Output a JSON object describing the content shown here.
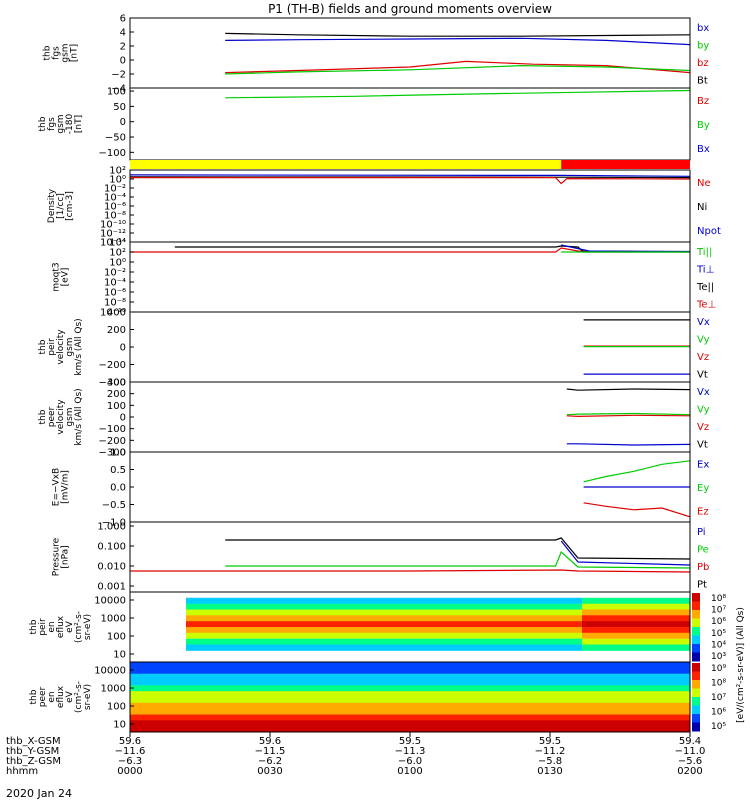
{
  "title": "P1 (TH-B) fields and ground moments overview",
  "date": "2020 Jan 24",
  "colors": {
    "black": "#000000",
    "red": "#dd0000",
    "green": "#00cc00",
    "blue": "#0000cc",
    "yellow": "#ffff00",
    "bar_red": "#ff0000"
  },
  "chart_data": [
    {
      "type": "line",
      "ylabel": [
        "thb",
        "fgs",
        "gsm",
        "[nT]"
      ],
      "ylim": [
        -4,
        6
      ],
      "ticks": [
        "6",
        "4",
        "2",
        "0",
        "−2",
        "−4"
      ],
      "tick_values": [
        6,
        4,
        2,
        0,
        -2,
        -4
      ],
      "series": [
        {
          "name": "Bt",
          "color": "#000000",
          "x": [
            0.17,
            0.3,
            0.5,
            0.7,
            0.85,
            1.0
          ],
          "values": [
            3.8,
            3.6,
            3.4,
            3.4,
            3.5,
            3.6
          ]
        },
        {
          "name": "bz",
          "color": "#dd0000",
          "x": [
            0.17,
            0.3,
            0.5,
            0.6,
            0.72,
            0.85,
            1.0
          ],
          "values": [
            -1.8,
            -1.5,
            -1.0,
            -0.2,
            -0.6,
            -0.8,
            -1.8
          ]
        },
        {
          "name": "by",
          "color": "#00cc00",
          "x": [
            0.17,
            0.3,
            0.5,
            0.7,
            0.85,
            1.0
          ],
          "values": [
            -2.0,
            -1.7,
            -1.4,
            -0.8,
            -1.0,
            -1.5
          ]
        },
        {
          "name": "bx",
          "color": "#0000cc",
          "x": [
            0.17,
            0.3,
            0.5,
            0.7,
            0.85,
            1.0
          ],
          "values": [
            2.8,
            2.9,
            3.0,
            3.1,
            2.8,
            2.2
          ]
        }
      ]
    },
    {
      "type": "line",
      "ylabel": [
        "thb",
        "fgs",
        "gsm",
        "-180",
        "[nT]"
      ],
      "ylim": [
        -125,
        110
      ],
      "ticks": [
        "100",
        "50",
        "0",
        "−50",
        "−100"
      ],
      "tick_values": [
        100,
        50,
        0,
        -50,
        -100
      ],
      "series": [
        {
          "name": "By",
          "color": "#00cc00",
          "x": [
            0.17,
            0.4,
            0.6,
            0.8,
            1.0
          ],
          "values": [
            78,
            83,
            90,
            96,
            102
          ]
        }
      ],
      "legend_only": [
        {
          "name": "Bz",
          "color": "#dd0000"
        },
        {
          "name": "By",
          "color": "#00cc00"
        },
        {
          "name": "Bx",
          "color": "#0000cc"
        }
      ]
    },
    {
      "type": "bar",
      "segments": [
        {
          "x0": 0.0,
          "x1": 0.77,
          "color": "#ffff00"
        },
        {
          "x0": 0.77,
          "x1": 1.0,
          "color": "#ff0000"
        }
      ]
    },
    {
      "type": "line",
      "ylabel": [
        "Density",
        "[1/cc]",
        "[cm-3]"
      ],
      "ylim": [
        -14,
        2
      ],
      "log": true,
      "ticks": [
        "10²",
        "10⁰",
        "10⁻²",
        "10⁻⁴",
        "10⁻⁶",
        "10⁻⁸",
        "10⁻¹⁰",
        "10⁻¹²",
        "10⁻¹⁴"
      ],
      "tick_values": [
        2,
        0,
        -2,
        -4,
        -6,
        -8,
        -10,
        -12,
        -14
      ],
      "series": [
        {
          "name": "Npot",
          "color": "#0000cc",
          "x": [
            0.0,
            0.77,
            1.0
          ],
          "values": [
            0.9,
            0.8,
            0.6
          ]
        },
        {
          "name": "Ni",
          "color": "#000000",
          "x": [
            0.0,
            0.77,
            1.0
          ],
          "values": [
            0.5,
            0.4,
            0.3
          ]
        },
        {
          "name": "Ne",
          "color": "#dd0000",
          "x": [
            0.0,
            0.76,
            0.77,
            0.78,
            1.0
          ],
          "values": [
            0.3,
            0.3,
            -1.0,
            0.1,
            0.0
          ]
        }
      ]
    },
    {
      "type": "line",
      "ylabel": [
        "moqt3",
        "[eV]"
      ],
      "ylim": [
        -10,
        4
      ],
      "log": true,
      "ticks": [
        "10⁴",
        "10²",
        "10⁰",
        "10⁻²",
        "10⁻⁴",
        "10⁻⁶",
        "10⁻⁸",
        "10⁻¹⁰"
      ],
      "tick_values": [
        4,
        2,
        0,
        -2,
        -4,
        -6,
        -8,
        -10
      ],
      "series": [
        {
          "name": "Te⊥",
          "color": "#dd0000",
          "x": [
            0.0,
            0.76,
            0.77,
            0.8,
            1.0
          ],
          "values": [
            2.0,
            2.0,
            2.8,
            2.2,
            2.0
          ]
        },
        {
          "name": "Te||",
          "color": "#000000",
          "x": [
            0.08,
            0.76,
            0.77,
            0.8,
            0.81,
            1.0
          ],
          "values": [
            3.0,
            3.0,
            3.2,
            3.0,
            2.0,
            2.0
          ]
        },
        {
          "name": "Ti⊥",
          "color": "#0000cc",
          "x": [
            0.77,
            0.82,
            1.0
          ],
          "values": [
            3.4,
            2.2,
            2.1
          ]
        },
        {
          "name": "Ti||",
          "color": "#00cc00",
          "x": [
            0.77,
            1.0
          ],
          "values": [
            2.0,
            2.0
          ]
        }
      ]
    },
    {
      "type": "line",
      "ylabel": [
        "thb",
        "peir",
        "velocity",
        "gsm",
        "km/s (All Qs)"
      ],
      "ylim": [
        -400,
        400
      ],
      "ticks": [
        "400",
        "200",
        "0",
        "−200",
        "−400"
      ],
      "tick_values": [
        400,
        200,
        0,
        -200,
        -400
      ],
      "series": [
        {
          "name": "Vt",
          "color": "#000000",
          "x": [
            0.81,
            1.0
          ],
          "values": [
            310,
            310
          ]
        },
        {
          "name": "Vz",
          "color": "#dd0000",
          "x": [
            0.81,
            1.0
          ],
          "values": [
            10,
            10
          ]
        },
        {
          "name": "Vy",
          "color": "#00cc00",
          "x": [
            0.81,
            1.0
          ],
          "values": [
            5,
            5
          ]
        },
        {
          "name": "Vx",
          "color": "#0000cc",
          "x": [
            0.81,
            1.0
          ],
          "values": [
            -310,
            -310
          ]
        }
      ]
    },
    {
      "type": "line",
      "ylabel": [
        "thb",
        "peer",
        "velocity",
        "gsm",
        "km/s (All Qs)"
      ],
      "ylim": [
        -300,
        300
      ],
      "ticks": [
        "300",
        "200",
        "100",
        "0",
        "−100",
        "−200",
        "−300"
      ],
      "tick_values": [
        300,
        200,
        100,
        0,
        -100,
        -200,
        -300
      ],
      "series": [
        {
          "name": "Vt",
          "color": "#000000",
          "x": [
            0.78,
            0.8,
            0.9,
            1.0
          ],
          "values": [
            240,
            230,
            240,
            235
          ]
        },
        {
          "name": "Vz",
          "color": "#dd0000",
          "x": [
            0.78,
            0.8,
            0.9,
            1.0
          ],
          "values": [
            10,
            5,
            15,
            10
          ]
        },
        {
          "name": "Vy",
          "color": "#00cc00",
          "x": [
            0.78,
            0.8,
            0.9,
            1.0
          ],
          "values": [
            20,
            25,
            30,
            20
          ]
        },
        {
          "name": "Vx",
          "color": "#0000cc",
          "x": [
            0.78,
            0.8,
            0.9,
            1.0
          ],
          "values": [
            -230,
            -230,
            -240,
            -235
          ]
        }
      ]
    },
    {
      "type": "line",
      "ylabel": [
        "E=−VxB",
        "[mV/m]"
      ],
      "ylim": [
        -1.0,
        1.0
      ],
      "ticks": [
        "1.0",
        "0.5",
        "0.0",
        "−0.5",
        "−1.0"
      ],
      "tick_values": [
        1.0,
        0.5,
        0.0,
        -0.5,
        -1.0
      ],
      "series": [
        {
          "name": "Ez",
          "color": "#dd0000",
          "x": [
            0.81,
            0.85,
            0.9,
            0.95,
            1.0
          ],
          "values": [
            -0.45,
            -0.55,
            -0.65,
            -0.6,
            -0.85
          ]
        },
        {
          "name": "Ey",
          "color": "#00cc00",
          "x": [
            0.81,
            0.85,
            0.9,
            0.95,
            1.0
          ],
          "values": [
            0.15,
            0.3,
            0.45,
            0.65,
            0.75
          ]
        },
        {
          "name": "Ex",
          "color": "#0000cc",
          "x": [
            0.81,
            1.0
          ],
          "values": [
            0.0,
            0.0
          ]
        }
      ]
    },
    {
      "type": "line",
      "ylabel": [
        "Pressure",
        "[nPa]"
      ],
      "ylim": [
        -3.3,
        0.2
      ],
      "log": true,
      "ticks": [
        "1.000",
        "0.100",
        "0.010",
        "0.001"
      ],
      "tick_values": [
        0,
        -1,
        -2,
        -3
      ],
      "series": [
        {
          "name": "Pt",
          "color": "#000000",
          "x": [
            0.17,
            0.76,
            0.77,
            0.8,
            1.0
          ],
          "values": [
            -0.7,
            -0.7,
            -0.6,
            -1.6,
            -1.65
          ]
        },
        {
          "name": "Pb",
          "color": "#dd0000",
          "x": [
            0.0,
            0.5,
            0.77,
            0.8,
            1.0
          ],
          "values": [
            -2.25,
            -2.25,
            -2.2,
            -2.25,
            -2.3
          ]
        },
        {
          "name": "Pe",
          "color": "#00cc00",
          "x": [
            0.17,
            0.76,
            0.77,
            0.8,
            1.0
          ],
          "values": [
            -2.0,
            -2.0,
            -1.3,
            -2.05,
            -2.1
          ]
        },
        {
          "name": "Pi",
          "color": "#0000cc",
          "x": [
            0.77,
            0.8,
            1.0
          ],
          "values": [
            -0.75,
            -1.8,
            -1.95
          ]
        }
      ]
    },
    {
      "type": "heatmap",
      "ylabel": [
        "thb",
        "peir",
        "en",
        "eflux",
        "eV",
        "(cm²-s-",
        "sr-eV)"
      ],
      "ticks": [
        "10000",
        "1000",
        "100",
        "10"
      ],
      "colorbar_ticks": [
        "10⁸",
        "10⁷",
        "10⁶",
        "10⁵",
        "10⁴",
        "10³"
      ]
    },
    {
      "type": "heatmap",
      "ylabel": [
        "thb",
        "peer",
        "en",
        "eflux",
        "eV",
        "(cm²-s-",
        "sr-eV)"
      ],
      "ticks": [
        "10000",
        "1000",
        "100",
        "10"
      ],
      "colorbar_ticks": [
        "10⁹",
        "10⁸",
        "10⁷",
        "10⁶",
        "10⁵"
      ]
    }
  ],
  "colorbar_label": "[eV/(cm²-s-sr-eV)] (All Qs)",
  "xaxis": {
    "rows": [
      {
        "label": "thb_X-GSM",
        "values": [
          "59.6",
          "59.6",
          "59.5",
          "59.5",
          "59.4"
        ]
      },
      {
        "label": "thb_Y-GSM",
        "values": [
          "−11.6",
          "−11.5",
          "−11.3",
          "−11.2",
          "−11.0"
        ]
      },
      {
        "label": "thb_Z-GSM",
        "values": [
          "−6.3",
          "−6.2",
          "−6.0",
          "−5.8",
          "−5.6"
        ]
      },
      {
        "label": "hhmm",
        "values": [
          "0000",
          "0030",
          "0100",
          "0130",
          "0200"
        ]
      }
    ]
  }
}
